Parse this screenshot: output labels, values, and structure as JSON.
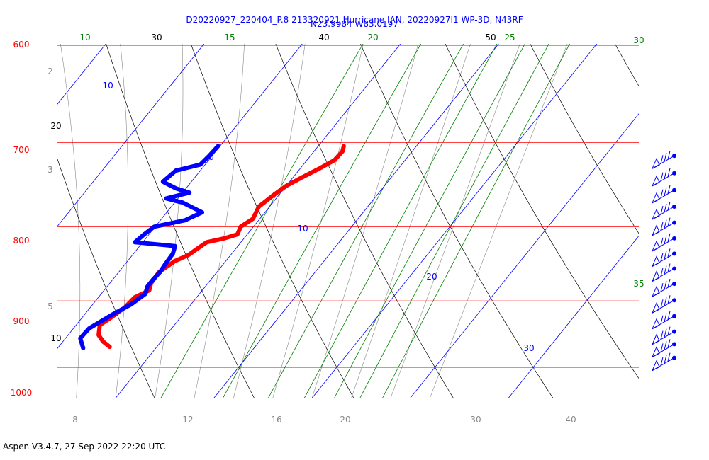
{
  "header": {
    "line1": "D20220927_220404_P.8 213320921 Hurricane IAN, 20220927I1 WP-3D, N43RF",
    "line2": "N23.9984 W83.0197"
  },
  "footer": {
    "text": "Aspen V3.4.7, 27 Sep 2022  22:20 UTC"
  },
  "colors": {
    "isobar": "#ff0000",
    "isotherm": "#0000ff",
    "mixing_ratio": "#008000",
    "dry_adiabat": "#000000",
    "moist_adiabat": "#888888",
    "temperature": "#ff0000",
    "dewpoint": "#0000ff",
    "wind_barb": "#0000ff"
  },
  "chart_data": {
    "type": "skew-t",
    "pressure_axis": {
      "range_hPa": [
        1030,
        600
      ],
      "scale": "log",
      "tick_labels": [
        "600",
        "700",
        "800",
        "900",
        "1000"
      ]
    },
    "isotherm_labels": [
      "-10",
      "0",
      "10",
      "20",
      "30"
    ],
    "mixing_ratio_labels": [
      "10",
      "15",
      "20",
      "25",
      "30",
      "35"
    ],
    "dry_adiabat_labels": [
      "10",
      "20",
      "30",
      "40",
      "50"
    ],
    "moist_adiabat_labels": [
      "2",
      "3",
      "5",
      "8",
      "12",
      "16",
      "20",
      "30",
      "40"
    ],
    "series": [
      {
        "key": "temperature",
        "points": [
          [
            704,
            12.6
          ],
          [
            710,
            12.9
          ],
          [
            720,
            12.8
          ],
          [
            730,
            11.9
          ],
          [
            740,
            10.9
          ],
          [
            750,
            10.0
          ],
          [
            760,
            9.5
          ],
          [
            775,
            8.9
          ],
          [
            790,
            9.3
          ],
          [
            800,
            8.7
          ],
          [
            810,
            9.0
          ],
          [
            815,
            8.0
          ],
          [
            820,
            6.5
          ],
          [
            830,
            6.0
          ],
          [
            837,
            5.7
          ],
          [
            845,
            4.8
          ],
          [
            860,
            4.1
          ],
          [
            875,
            4.2
          ],
          [
            885,
            4.6
          ],
          [
            895,
            3.7
          ],
          [
            910,
            3.5
          ],
          [
            925,
            2.9
          ],
          [
            935,
            2.4
          ],
          [
            950,
            3.1
          ],
          [
            960,
            4.1
          ],
          [
            968,
            5.2
          ]
        ]
      },
      {
        "key": "dewpoint",
        "points": [
          [
            704,
            -0.2
          ],
          [
            715,
            -0.3
          ],
          [
            725,
            -0.5
          ],
          [
            732,
            -2.5
          ],
          [
            745,
            -2.9
          ],
          [
            753,
            -1.0
          ],
          [
            758,
            0.7
          ],
          [
            765,
            -1.2
          ],
          [
            770,
            0.8
          ],
          [
            782,
            3.6
          ],
          [
            792,
            2.5
          ],
          [
            800,
            -0.1
          ],
          [
            810,
            -0.5
          ],
          [
            820,
            -0.8
          ],
          [
            825,
            3.6
          ],
          [
            835,
            4.0
          ],
          [
            850,
            4.1
          ],
          [
            860,
            4.2
          ],
          [
            870,
            4.1
          ],
          [
            880,
            4.1
          ],
          [
            890,
            4.5
          ],
          [
            905,
            3.9
          ],
          [
            920,
            2.8
          ],
          [
            940,
            1.6
          ],
          [
            955,
            1.5
          ],
          [
            970,
            2.6
          ]
        ]
      }
    ],
    "wind_levels_hPa": [
      715,
      735,
      755,
      775,
      795,
      815,
      835,
      855,
      876,
      899,
      922,
      945,
      964,
      985
    ]
  }
}
